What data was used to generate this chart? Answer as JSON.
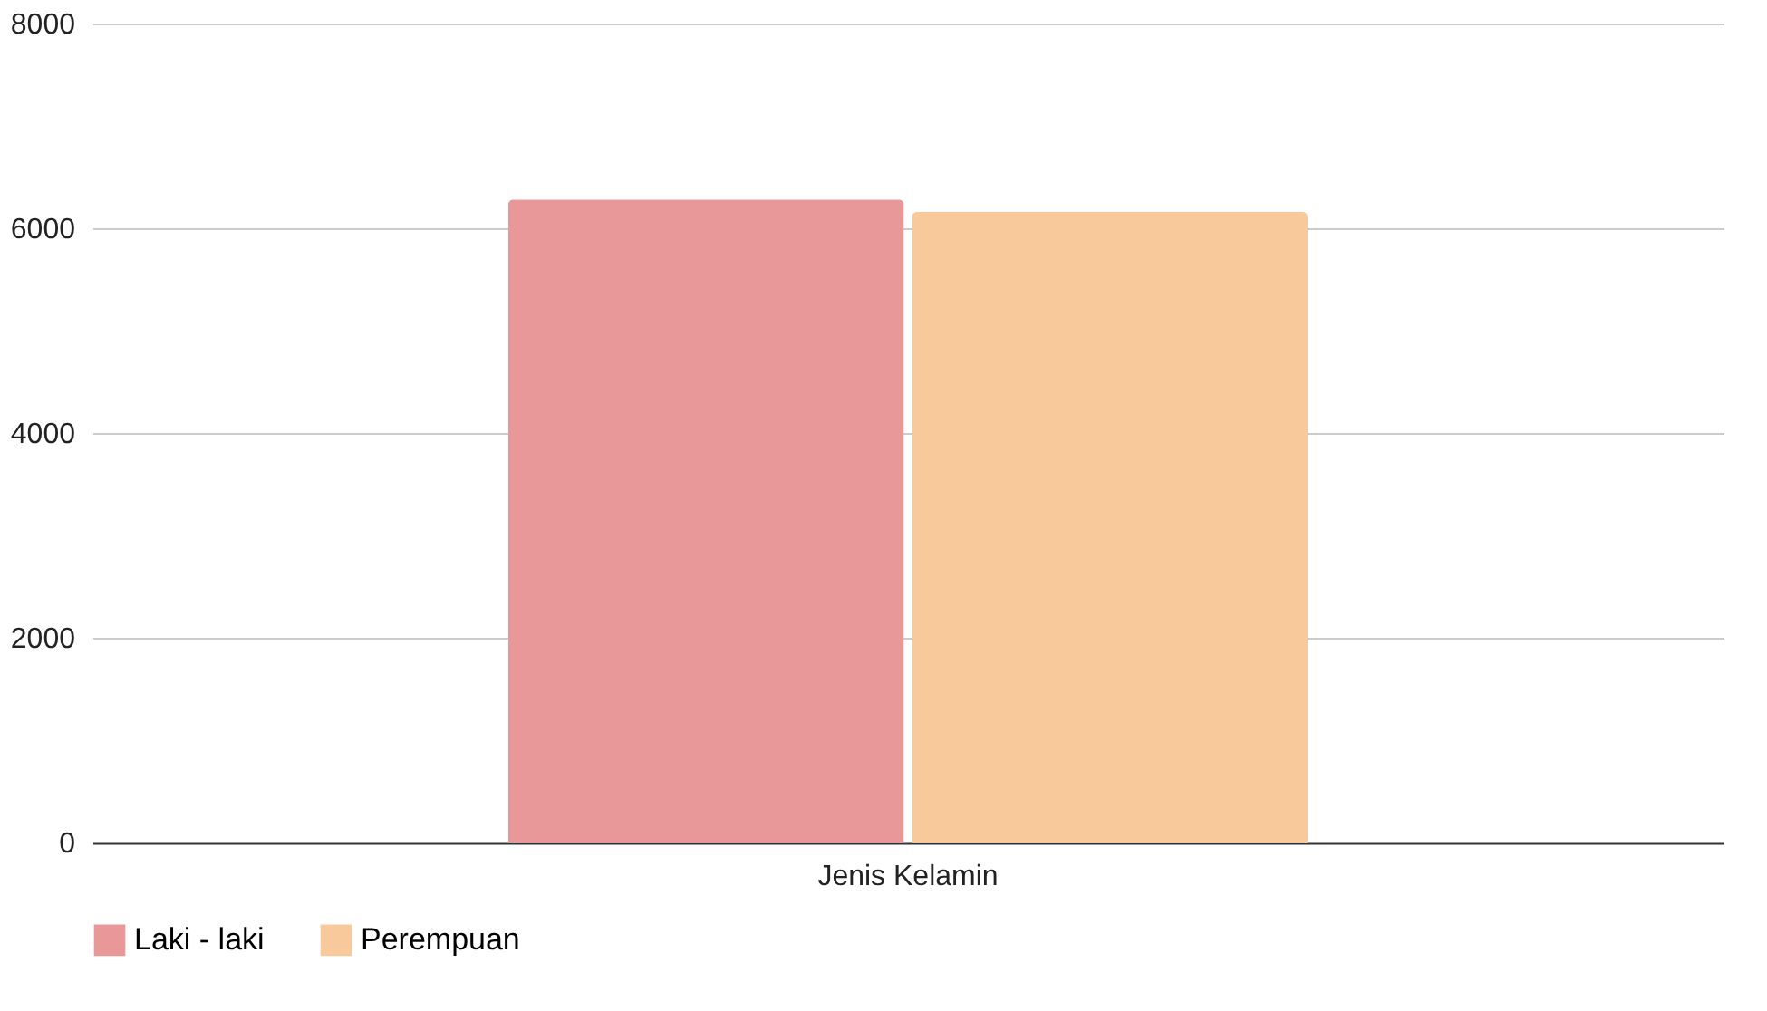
{
  "chart_data": {
    "type": "bar",
    "categories": [
      "Jenis Kelamin"
    ],
    "series": [
      {
        "name": "Laki - laki",
        "color": "#e89898",
        "values": [
          6280
        ]
      },
      {
        "name": "Perempuan",
        "color": "#f7c99b",
        "values": [
          6160
        ]
      }
    ],
    "ylim": [
      0,
      8000
    ],
    "yticks": [
      0,
      2000,
      4000,
      6000,
      8000
    ],
    "grid": "y",
    "legend": "bottom"
  }
}
